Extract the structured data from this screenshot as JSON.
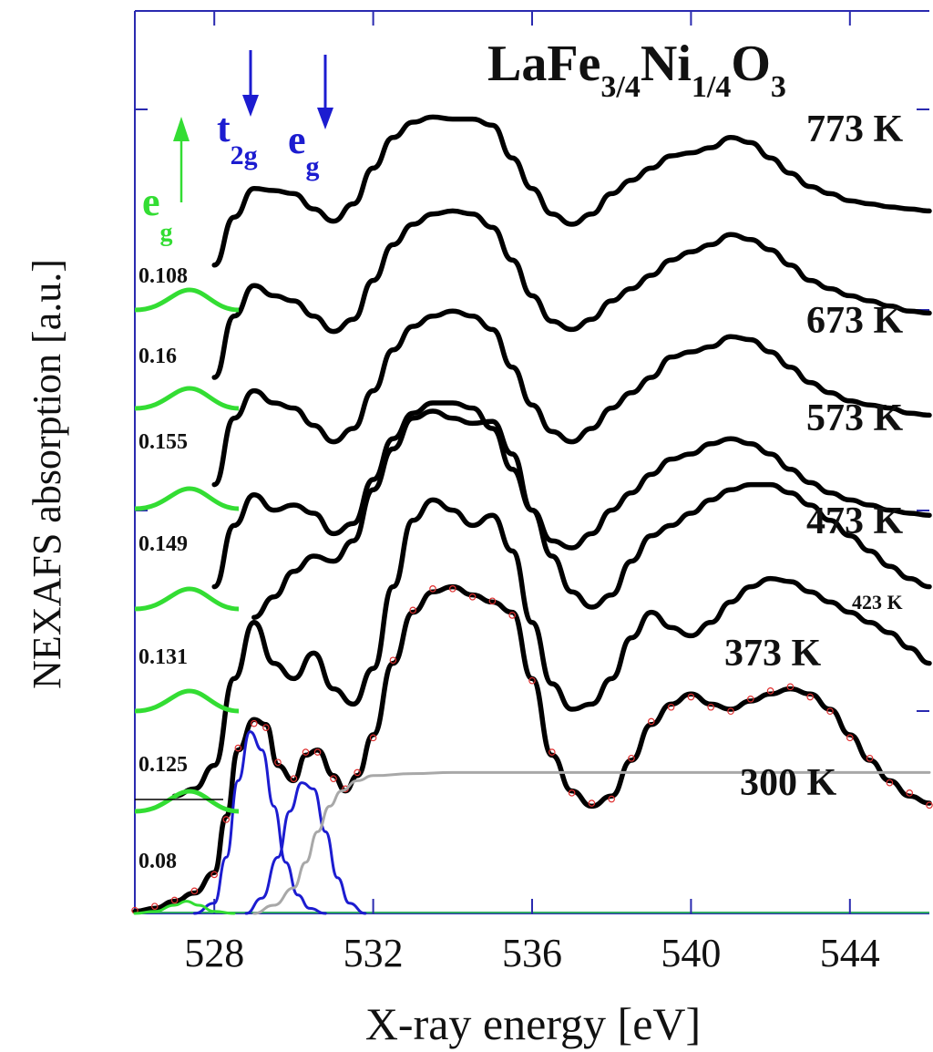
{
  "chart_data": {
    "type": "line",
    "title": "LaFe3/4Ni1/4O3",
    "title_parts": {
      "base1": "LaFe",
      "sub1": "3/4",
      "base2": "Ni",
      "sub2": "1/4",
      "base3": "O",
      "sub3": "3"
    },
    "xlabel": "X-ray energy [eV]",
    "ylabel": "NEXAFS absorption [a.u.]",
    "xlim": [
      526,
      546
    ],
    "x_ticks": [
      528,
      532,
      536,
      540,
      544
    ],
    "x_tick_labels": [
      "528",
      "532",
      "536",
      "540",
      "544"
    ],
    "grid": false,
    "annotations": {
      "t2g": {
        "base": "t",
        "sub": "2g",
        "color": "#1c1cd0",
        "arrow": "down"
      },
      "eg_blue": {
        "base": "e",
        "sub": "g",
        "color": "#1c1cd0",
        "arrow": "down"
      },
      "eg_green": {
        "base": "e",
        "sub": "g",
        "color": "#33dd33",
        "arrow": "up"
      }
    },
    "series": [
      {
        "name": "773 K",
        "color": "#000000",
        "peak_area": "0.108",
        "x": [
          528,
          528.5,
          529,
          529.5,
          530,
          530.5,
          531,
          531.5,
          532,
          532.5,
          533,
          533.5,
          534,
          534.5,
          535,
          535.5,
          536,
          536.5,
          537,
          537.5,
          538,
          538.5,
          539,
          539.5,
          540,
          540.5,
          541,
          541.5,
          542,
          542.5,
          543,
          543.5,
          544,
          544.5,
          545,
          545.5,
          546
        ],
        "y": [
          6.35,
          6.82,
          7.1,
          7.08,
          7.05,
          6.9,
          6.78,
          6.95,
          7.3,
          7.6,
          7.75,
          7.8,
          7.78,
          7.78,
          7.72,
          7.4,
          7.1,
          6.85,
          6.75,
          6.85,
          7.05,
          7.18,
          7.3,
          7.42,
          7.45,
          7.5,
          7.6,
          7.55,
          7.4,
          7.25,
          7.12,
          7.05,
          6.98,
          6.95,
          6.92,
          6.9,
          6.88
        ]
      },
      {
        "name": "673 K",
        "color": "#000000",
        "peak_area": "0.16",
        "x": [
          528,
          528.5,
          529,
          529.5,
          530,
          530.5,
          531,
          531.5,
          532,
          532.5,
          533,
          533.5,
          534,
          534.5,
          535,
          535.5,
          536,
          536.5,
          537,
          537.5,
          538,
          538.5,
          539,
          539.5,
          540,
          540.5,
          541,
          541.5,
          542,
          542.5,
          543,
          543.5,
          544,
          544.5,
          545,
          545.5,
          546
        ],
        "y": [
          5.25,
          5.85,
          6.15,
          6.05,
          6.0,
          5.85,
          5.7,
          5.82,
          6.2,
          6.55,
          6.75,
          6.85,
          6.88,
          6.85,
          6.72,
          6.4,
          6.05,
          5.8,
          5.72,
          5.82,
          6.0,
          6.12,
          6.25,
          6.4,
          6.48,
          6.55,
          6.65,
          6.6,
          6.5,
          6.35,
          6.2,
          6.12,
          6.05,
          6.0,
          5.95,
          5.9,
          5.88
        ]
      },
      {
        "name": "573 K",
        "color": "#000000",
        "peak_area": "0.155",
        "x": [
          528,
          528.5,
          529,
          529.5,
          530,
          530.5,
          531,
          531.5,
          532,
          532.5,
          533,
          533.5,
          534,
          534.5,
          535,
          535.5,
          536,
          536.5,
          537,
          537.5,
          538,
          538.5,
          539,
          539.5,
          540,
          540.5,
          541,
          541.5,
          542,
          542.5,
          543,
          543.5,
          544,
          544.5,
          545,
          545.5,
          546
        ],
        "y": [
          4.2,
          4.85,
          5.12,
          5.0,
          4.95,
          4.78,
          4.62,
          4.75,
          5.12,
          5.52,
          5.75,
          5.85,
          5.9,
          5.85,
          5.72,
          5.35,
          4.98,
          4.72,
          4.62,
          4.75,
          4.95,
          5.1,
          5.25,
          5.45,
          5.5,
          5.55,
          5.65,
          5.62,
          5.5,
          5.35,
          5.2,
          5.1,
          5.02,
          4.98,
          4.95,
          4.9,
          4.88
        ]
      },
      {
        "name": "473 K",
        "color": "#000000",
        "peak_area": "0.149",
        "x": [
          528,
          528.5,
          529,
          529.5,
          530,
          530.5,
          531,
          531.5,
          532,
          532.5,
          533,
          533.5,
          534,
          534.5,
          535,
          535.5,
          536,
          536.5,
          537,
          537.5,
          538,
          538.5,
          539,
          539.5,
          540,
          540.5,
          541,
          541.5,
          542,
          542.5,
          543,
          543.5,
          544,
          544.5,
          545,
          545.5,
          546
        ],
        "y": [
          3.2,
          3.8,
          4.1,
          3.95,
          4.0,
          3.92,
          3.72,
          3.82,
          4.25,
          4.65,
          4.9,
          5.0,
          5.0,
          4.95,
          4.75,
          4.35,
          3.95,
          3.65,
          3.58,
          3.72,
          3.95,
          4.12,
          4.3,
          4.45,
          4.5,
          4.6,
          4.65,
          4.6,
          4.5,
          4.35,
          4.22,
          4.12,
          4.05,
          4.0,
          3.95,
          3.92,
          3.9
        ]
      },
      {
        "name": "423 K",
        "color": "#000000",
        "x": [
          529,
          529.5,
          530,
          530.5,
          531,
          531.5,
          532,
          532.5,
          533,
          533.5,
          534,
          534.5,
          535,
          535.5,
          536,
          536.5,
          537,
          537.5,
          538,
          538.5,
          539,
          539.5,
          540,
          540.5,
          541,
          541.5,
          542,
          542.5,
          543,
          543.5,
          544,
          544.5,
          545,
          545.5,
          546
        ],
        "y": [
          2.9,
          3.1,
          3.35,
          3.5,
          3.45,
          3.65,
          4.15,
          4.55,
          4.85,
          4.92,
          4.85,
          4.8,
          4.82,
          4.5,
          3.95,
          3.5,
          3.15,
          3.0,
          3.12,
          3.45,
          3.7,
          3.8,
          3.92,
          4.05,
          4.15,
          4.2,
          4.2,
          4.12,
          4.0,
          3.85,
          3.7,
          3.55,
          3.4,
          3.28,
          3.2
        ]
      },
      {
        "name": "373 K",
        "color": "#000000",
        "peak_area": "0.131",
        "x": [
          527,
          527.5,
          528,
          528.5,
          529,
          529.5,
          530,
          530.5,
          531,
          531.5,
          532,
          532.5,
          533,
          533.5,
          534,
          534.5,
          535,
          535.5,
          536,
          536.5,
          537,
          537.5,
          538,
          538.5,
          539,
          539.5,
          540,
          540.5,
          541,
          541.5,
          542,
          542.5,
          543,
          543.5,
          544,
          544.5,
          545,
          545.5,
          546
        ],
        "y": [
          1.15,
          1.22,
          1.45,
          2.3,
          2.85,
          2.45,
          2.3,
          2.55,
          2.2,
          2.05,
          2.4,
          3.2,
          3.85,
          4.05,
          3.95,
          3.8,
          3.9,
          3.55,
          2.85,
          2.25,
          2.0,
          2.05,
          2.3,
          2.7,
          2.95,
          2.8,
          2.72,
          2.85,
          3.05,
          3.2,
          3.28,
          3.25,
          3.15,
          3.05,
          2.95,
          2.85,
          2.75,
          2.6,
          2.45
        ]
      },
      {
        "name": "300 K",
        "color": "#000000",
        "peak_area": "0.125",
        "x": [
          526,
          526.5,
          527,
          527.5,
          528,
          528.3,
          528.6,
          529,
          529.3,
          529.6,
          530,
          530.3,
          530.6,
          531,
          531.3,
          531.6,
          532,
          532.5,
          533,
          533.5,
          534,
          534.5,
          535,
          535.5,
          536,
          536.5,
          537,
          537.5,
          538,
          538.5,
          539,
          539.5,
          540,
          540.5,
          541,
          541.5,
          542,
          542.5,
          543,
          543.5,
          544,
          544.5,
          545,
          545.5,
          546
        ],
        "y": [
          0.02,
          0.05,
          0.12,
          0.2,
          0.4,
          0.95,
          1.6,
          1.9,
          1.85,
          1.45,
          1.3,
          1.55,
          1.6,
          1.35,
          1.2,
          1.35,
          1.75,
          2.45,
          2.95,
          3.15,
          3.2,
          3.12,
          3.05,
          2.95,
          2.3,
          1.55,
          1.2,
          1.05,
          1.15,
          1.5,
          1.85,
          2.05,
          2.15,
          2.05,
          2.0,
          2.08,
          2.15,
          2.2,
          2.15,
          2.0,
          1.75,
          1.5,
          1.3,
          1.15,
          1.08
        ]
      },
      {
        "name": "fit",
        "color": "#e03030",
        "style": "open-circles",
        "x": [
          526,
          526.5,
          527,
          527.5,
          528,
          528.3,
          528.6,
          529,
          529.3,
          529.6,
          530,
          530.3,
          530.6,
          531,
          531.3,
          531.6,
          532,
          532.5,
          533,
          533.5,
          534,
          534.5,
          535,
          535.5,
          536,
          536.5,
          537,
          537.5,
          538,
          538.5,
          539,
          539.5,
          540,
          540.5,
          541,
          541.5,
          542,
          542.5,
          543,
          543.5,
          544,
          544.5,
          545,
          545.5,
          546
        ],
        "y": [
          0.03,
          0.07,
          0.13,
          0.22,
          0.38,
          0.92,
          1.62,
          1.86,
          1.82,
          1.48,
          1.32,
          1.58,
          1.58,
          1.32,
          1.22,
          1.38,
          1.72,
          2.48,
          2.97,
          3.18,
          3.18,
          3.1,
          3.06,
          2.92,
          2.28,
          1.58,
          1.18,
          1.08,
          1.12,
          1.52,
          1.88,
          2.02,
          2.12,
          2.02,
          1.98,
          2.1,
          2.18,
          2.22,
          2.12,
          1.98,
          1.72,
          1.52,
          1.28,
          1.18,
          1.06
        ]
      },
      {
        "name": "t2g",
        "color": "#1c1cd0",
        "x": [
          527.5,
          528,
          528.3,
          528.6,
          528.9,
          529.2,
          529.5,
          529.8,
          530.1,
          530.4,
          530.8
        ],
        "y": [
          0.0,
          0.1,
          0.55,
          1.3,
          1.78,
          1.6,
          1.05,
          0.5,
          0.18,
          0.05,
          0.0
        ]
      },
      {
        "name": "eg",
        "color": "#1c1cd0",
        "x": [
          528.8,
          529.2,
          529.6,
          529.9,
          530.2,
          530.5,
          530.8,
          531.1,
          531.4,
          531.8
        ],
        "y": [
          0.0,
          0.15,
          0.55,
          1.0,
          1.28,
          1.22,
          0.8,
          0.35,
          0.1,
          0.0
        ]
      },
      {
        "name": "step",
        "color": "#a8a8a8",
        "x": [
          529,
          529.5,
          530,
          530.3,
          530.6,
          530.9,
          531.2,
          531.6,
          532,
          533,
          534,
          536,
          540,
          546
        ],
        "y": [
          0.0,
          0.08,
          0.25,
          0.5,
          0.8,
          1.05,
          1.2,
          1.3,
          1.35,
          1.37,
          1.38,
          1.38,
          1.38,
          1.38
        ]
      },
      {
        "name": "pre-edge",
        "color": "#33dd33",
        "x": [
          526,
          526.5,
          527,
          527.3,
          527.6,
          528,
          528.5
        ],
        "y": [
          0.0,
          0.02,
          0.08,
          0.12,
          0.08,
          0.02,
          0.0
        ]
      }
    ]
  }
}
